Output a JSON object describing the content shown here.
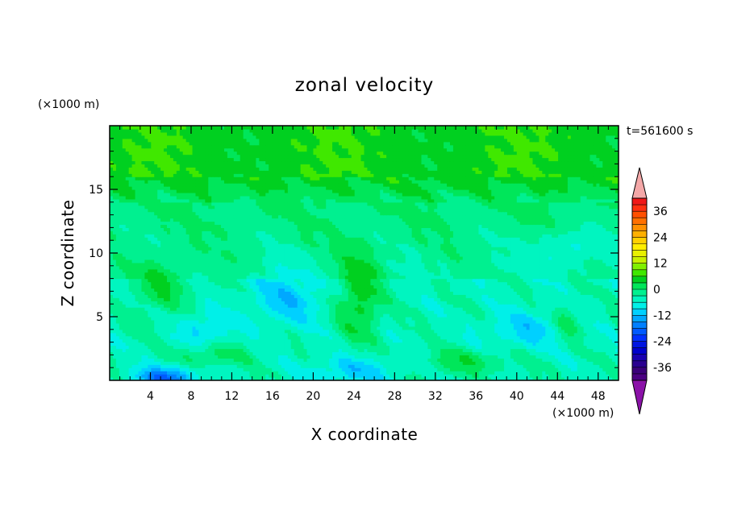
{
  "chart_data": {
    "type": "heatmap",
    "title": "zonal velocity",
    "xlabel": "X coordinate",
    "ylabel": "Z coordinate",
    "x_unit": "(×1000 m)",
    "y_unit": "(×1000 m)",
    "time_label": "t=561600 s",
    "xlim": [
      0,
      50
    ],
    "ylim": [
      0,
      20
    ],
    "x_ticks": [
      4,
      8,
      12,
      16,
      20,
      24,
      28,
      32,
      36,
      40,
      44,
      48
    ],
    "y_ticks": [
      5,
      10,
      15
    ],
    "colorbar": {
      "levels": [
        -42,
        -39,
        -36,
        -33,
        -30,
        -27,
        -24,
        -21,
        -18,
        -15,
        -12,
        -9,
        -6,
        -3,
        0,
        3,
        6,
        9,
        12,
        15,
        18,
        21,
        24,
        27,
        30,
        33,
        36,
        39,
        42
      ],
      "tick_values": [
        -36,
        -24,
        -12,
        0,
        12,
        24,
        36
      ],
      "colors": [
        "#4b0082",
        "#3a007a",
        "#2a0090",
        "#1a00b0",
        "#0000cc",
        "#0015e0",
        "#0030ff",
        "#005aff",
        "#0080ff",
        "#00a8ff",
        "#00d0ff",
        "#00f0e8",
        "#00f5c0",
        "#00f090",
        "#00e65a",
        "#00d020",
        "#40e800",
        "#80f000",
        "#c8f000",
        "#e8f000",
        "#ffee00",
        "#ffd000",
        "#ffb000",
        "#ff9000",
        "#ff7000",
        "#ff5000",
        "#ff3010",
        "#f01818"
      ],
      "under_color": "#8b12a8",
      "over_color": "#f4a8a8"
    },
    "field_description_values": {
      "stratosphere_band_z": [
        16,
        20
      ],
      "stratosphere_u": 5,
      "mid_u": 0,
      "low_min_u": -15,
      "low_max_u": 7
    }
  }
}
